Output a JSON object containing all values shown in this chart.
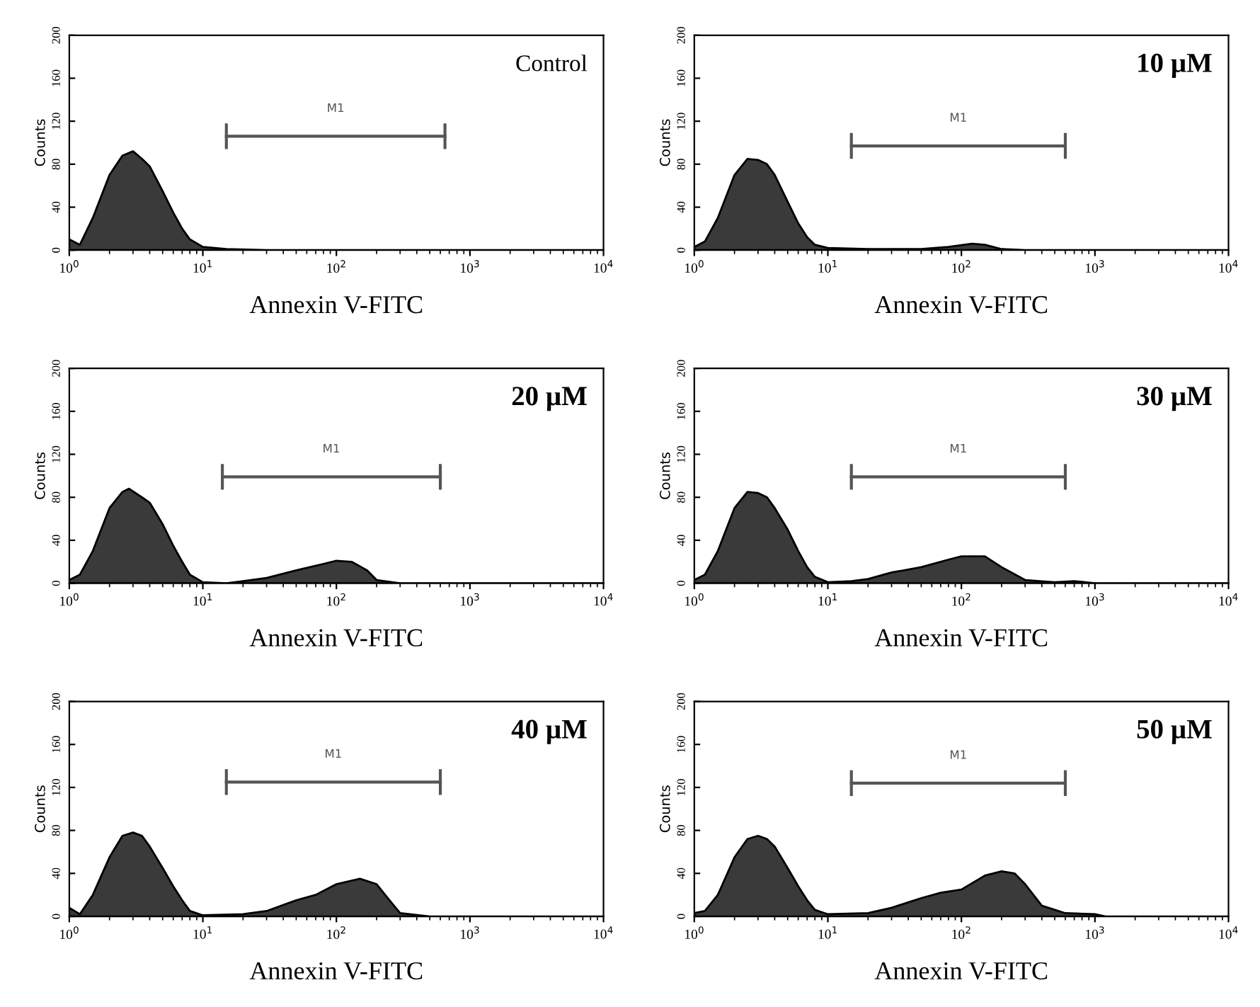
{
  "chart_data": [
    {
      "type": "area",
      "title": "Control",
      "xlabel": "Annexin V-FITC",
      "ylabel": "Counts",
      "log": "x",
      "xlim": [
        1,
        10000
      ],
      "ylim": [
        0,
        200
      ],
      "xticks": [
        {
          "value": 1,
          "label": "10$^{0}$"
        },
        {
          "value": 10,
          "label": "10$^{1}$"
        },
        {
          "value": 100,
          "label": "10$^{2}$"
        },
        {
          "value": 1000,
          "label": "10$^{3}$"
        },
        {
          "value": 10000,
          "label": "10$^{4}$"
        }
      ],
      "yticks": [
        0,
        40,
        80,
        120,
        160,
        200
      ],
      "series": [
        {
          "type": "line",
          "name": "M1",
          "color": "#555555",
          "x": [
            15,
            650
          ],
          "values": [
            106,
            106
          ],
          "errors": [
            12,
            12
          ]
        },
        {
          "color": "#3a3a3a",
          "x": [
            1,
            1.2,
            1.5,
            2,
            2.5,
            3,
            3.5,
            4,
            5,
            6,
            7,
            8,
            10,
            15,
            30,
            10000
          ],
          "values": [
            10,
            5,
            30,
            70,
            88,
            92,
            85,
            78,
            55,
            35,
            20,
            10,
            3,
            1,
            0,
            0
          ]
        }
      ]
    },
    {
      "type": "area",
      "title": "10 µM",
      "xlabel": "Annexin V-FITC",
      "ylabel": "Counts",
      "log": "x",
      "xlim": [
        1,
        10000
      ],
      "ylim": [
        0,
        200
      ],
      "xticks": [
        {
          "value": 1,
          "label": "10$^{0}$"
        },
        {
          "value": 10,
          "label": "10$^{1}$"
        },
        {
          "value": 100,
          "label": "10$^{2}$"
        },
        {
          "value": 1000,
          "label": "10$^{3}$"
        },
        {
          "value": 10000,
          "label": "10$^{4}$"
        }
      ],
      "yticks": [
        0,
        40,
        80,
        120,
        160,
        200
      ],
      "series": [
        {
          "type": "line",
          "name": "M1",
          "color": "#555555",
          "x": [
            15,
            600
          ],
          "values": [
            97,
            97
          ],
          "errors": [
            12,
            12
          ]
        },
        {
          "color": "#3a3a3a",
          "x": [
            1,
            1.2,
            1.5,
            2,
            2.5,
            3,
            3.5,
            4,
            5,
            6,
            7,
            8,
            10,
            20,
            50,
            80,
            120,
            150,
            200,
            300,
            10000
          ],
          "values": [
            3,
            8,
            30,
            70,
            85,
            84,
            80,
            70,
            45,
            25,
            12,
            5,
            2,
            1,
            1,
            3,
            6,
            5,
            1,
            0,
            0
          ]
        }
      ]
    },
    {
      "type": "area",
      "title": "20 µM",
      "xlabel": "Annexin V-FITC",
      "ylabel": "Counts",
      "log": "x",
      "xlim": [
        1,
        10000
      ],
      "ylim": [
        0,
        200
      ],
      "xticks": [
        {
          "value": 1,
          "label": "10$^{0}$"
        },
        {
          "value": 10,
          "label": "10$^{1}$"
        },
        {
          "value": 100,
          "label": "10$^{2}$"
        },
        {
          "value": 1000,
          "label": "10$^{3}$"
        },
        {
          "value": 10000,
          "label": "10$^{4}$"
        }
      ],
      "yticks": [
        0,
        40,
        80,
        120,
        160,
        200
      ],
      "series": [
        {
          "type": "line",
          "name": "M1",
          "color": "#555555",
          "x": [
            14,
            600
          ],
          "values": [
            99,
            99
          ],
          "errors": [
            12,
            12
          ]
        },
        {
          "color": "#3a3a3a",
          "x": [
            1,
            1.2,
            1.5,
            2,
            2.5,
            2.8,
            3.5,
            4,
            5,
            6,
            7,
            8,
            10,
            15,
            20,
            30,
            50,
            80,
            100,
            130,
            170,
            200,
            300,
            10000
          ],
          "values": [
            3,
            8,
            30,
            70,
            85,
            88,
            80,
            75,
            55,
            35,
            20,
            8,
            1,
            0,
            2,
            5,
            12,
            18,
            21,
            20,
            12,
            3,
            0,
            0
          ]
        }
      ]
    },
    {
      "type": "area",
      "title": "30 µM",
      "xlabel": "Annexin V-FITC",
      "ylabel": "Counts",
      "log": "x",
      "xlim": [
        1,
        10000
      ],
      "ylim": [
        0,
        200
      ],
      "xticks": [
        {
          "value": 1,
          "label": "10$^{0}$"
        },
        {
          "value": 10,
          "label": "10$^{1}$"
        },
        {
          "value": 100,
          "label": "10$^{2}$"
        },
        {
          "value": 1000,
          "label": "10$^{3}$"
        },
        {
          "value": 10000,
          "label": "10$^{4}$"
        }
      ],
      "yticks": [
        0,
        40,
        80,
        120,
        160,
        200
      ],
      "series": [
        {
          "type": "line",
          "name": "M1",
          "color": "#555555",
          "x": [
            15,
            600
          ],
          "values": [
            99,
            99
          ],
          "errors": [
            12,
            12
          ]
        },
        {
          "color": "#3a3a3a",
          "x": [
            1,
            1.2,
            1.5,
            2,
            2.5,
            3,
            3.5,
            4,
            5,
            6,
            7,
            8,
            10,
            15,
            20,
            30,
            50,
            80,
            100,
            150,
            200,
            300,
            500,
            700,
            1000,
            10000
          ],
          "values": [
            3,
            8,
            30,
            70,
            85,
            84,
            80,
            70,
            50,
            30,
            15,
            6,
            1,
            2,
            4,
            10,
            15,
            22,
            25,
            25,
            15,
            3,
            1,
            2,
            0,
            0
          ]
        }
      ]
    },
    {
      "type": "area",
      "title": "40 µM",
      "xlabel": "Annexin V-FITC",
      "ylabel": "Counts",
      "log": "x",
      "xlim": [
        1,
        10000
      ],
      "ylim": [
        0,
        200
      ],
      "xticks": [
        {
          "value": 1,
          "label": "10$^{0}$"
        },
        {
          "value": 10,
          "label": "10$^{1}$"
        },
        {
          "value": 100,
          "label": "10$^{2}$"
        },
        {
          "value": 1000,
          "label": "10$^{3}$"
        },
        {
          "value": 10000,
          "label": "10$^{4}$"
        }
      ],
      "yticks": [
        0,
        40,
        80,
        120,
        160,
        200
      ],
      "series": [
        {
          "type": "line",
          "name": "M1",
          "color": "#555555",
          "x": [
            15,
            600
          ],
          "values": [
            125,
            125
          ],
          "errors": [
            12,
            12
          ]
        },
        {
          "color": "#3a3a3a",
          "x": [
            1,
            1.2,
            1.5,
            2,
            2.5,
            3,
            3.5,
            4,
            5,
            6,
            7,
            8,
            10,
            20,
            30,
            50,
            70,
            100,
            150,
            200,
            250,
            300,
            500,
            10000
          ],
          "values": [
            8,
            2,
            20,
            55,
            75,
            78,
            75,
            65,
            45,
            28,
            15,
            5,
            1,
            2,
            5,
            15,
            20,
            30,
            35,
            30,
            15,
            3,
            0,
            0
          ]
        }
      ]
    },
    {
      "type": "area",
      "title": "50 µM",
      "xlabel": "Annexin V-FITC",
      "ylabel": "Counts",
      "log": "x",
      "xlim": [
        1,
        10000
      ],
      "ylim": [
        0,
        200
      ],
      "xticks": [
        {
          "value": 1,
          "label": "10$^{0}$"
        },
        {
          "value": 10,
          "label": "10$^{1}$"
        },
        {
          "value": 100,
          "label": "10$^{2}$"
        },
        {
          "value": 1000,
          "label": "10$^{3}$"
        },
        {
          "value": 10000,
          "label": "10$^{4}$"
        }
      ],
      "yticks": [
        0,
        40,
        80,
        120,
        160,
        200
      ],
      "series": [
        {
          "type": "line",
          "name": "M1",
          "color": "#555555",
          "x": [
            15,
            600
          ],
          "values": [
            124,
            124
          ],
          "errors": [
            12,
            12
          ]
        },
        {
          "color": "#3a3a3a",
          "x": [
            1,
            1.2,
            1.5,
            2,
            2.5,
            3,
            3.5,
            4,
            5,
            6,
            7,
            8,
            10,
            20,
            30,
            50,
            70,
            100,
            150,
            200,
            250,
            300,
            400,
            600,
            1000,
            1200,
            10000
          ],
          "values": [
            3,
            5,
            20,
            55,
            72,
            75,
            72,
            65,
            45,
            28,
            15,
            6,
            2,
            3,
            8,
            17,
            22,
            25,
            38,
            42,
            40,
            30,
            10,
            3,
            2,
            0,
            0
          ]
        }
      ]
    }
  ]
}
